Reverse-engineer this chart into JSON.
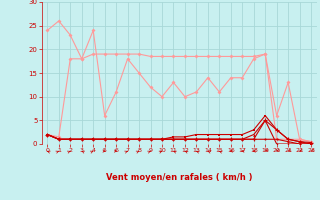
{
  "xlabel": "Vent moyen/en rafales ( km/h )",
  "bg_color": "#c8f0f0",
  "grid_color": "#a8d8d8",
  "x": [
    0,
    1,
    2,
    3,
    4,
    5,
    6,
    7,
    8,
    9,
    10,
    11,
    12,
    13,
    14,
    15,
    16,
    17,
    18,
    19,
    20,
    21,
    22,
    23
  ],
  "line1": [
    24,
    26,
    23,
    18,
    24,
    6,
    11,
    18,
    15,
    12,
    10,
    13,
    10,
    11,
    14,
    11,
    14,
    14,
    18,
    19,
    6,
    13,
    1,
    0.5
  ],
  "line2": [
    2,
    1.5,
    18,
    18,
    19,
    19,
    19,
    19,
    19,
    18.5,
    18.5,
    18.5,
    18.5,
    18.5,
    18.5,
    18.5,
    18.5,
    18.5,
    18.5,
    19,
    1,
    1,
    1,
    0.5
  ],
  "line3": [
    2,
    1,
    1,
    1,
    1,
    1,
    1,
    1,
    1,
    1,
    1,
    1,
    1,
    1,
    1,
    1,
    1,
    1,
    1,
    5,
    3,
    1,
    0.5,
    0.3
  ],
  "line4": [
    2,
    1,
    1,
    1,
    1,
    1,
    1,
    1,
    1,
    1,
    1,
    1.5,
    1.5,
    2,
    2,
    2,
    2,
    2,
    3,
    6,
    3,
    1,
    0.5,
    0
  ],
  "line5": [
    2,
    1,
    1,
    1,
    1,
    1,
    1,
    1,
    1,
    1,
    1,
    1,
    1,
    1,
    1,
    1,
    1,
    1,
    1,
    1,
    1,
    0.5,
    0,
    0
  ],
  "line6": [
    2,
    1,
    1,
    1,
    1,
    1,
    1,
    1,
    1,
    1,
    1,
    1,
    1,
    1,
    1,
    1,
    1,
    1,
    2,
    5,
    0,
    0,
    0,
    0
  ],
  "yticks": [
    0,
    5,
    10,
    15,
    20,
    25,
    30
  ],
  "xticks": [
    0,
    1,
    2,
    3,
    4,
    5,
    6,
    7,
    8,
    9,
    10,
    11,
    12,
    13,
    14,
    15,
    16,
    17,
    18,
    19,
    20,
    21,
    22,
    23
  ],
  "line1_color": "#ff9999",
  "line2_color": "#ff9999",
  "line3_color": "#cc0000",
  "line4_color": "#cc0000",
  "line5_color": "#cc0000",
  "line6_color": "#cc0000",
  "xlabel_color": "#cc0000",
  "tick_color": "#cc0000",
  "arrow_color": "#cc0000",
  "ymax": 30,
  "ymin": 0,
  "arrow_angles": [
    315,
    45,
    45,
    315,
    45,
    90,
    90,
    45,
    45,
    45,
    45,
    315,
    315,
    315,
    315,
    315,
    270,
    270,
    270,
    225,
    225,
    225,
    225,
    225
  ]
}
